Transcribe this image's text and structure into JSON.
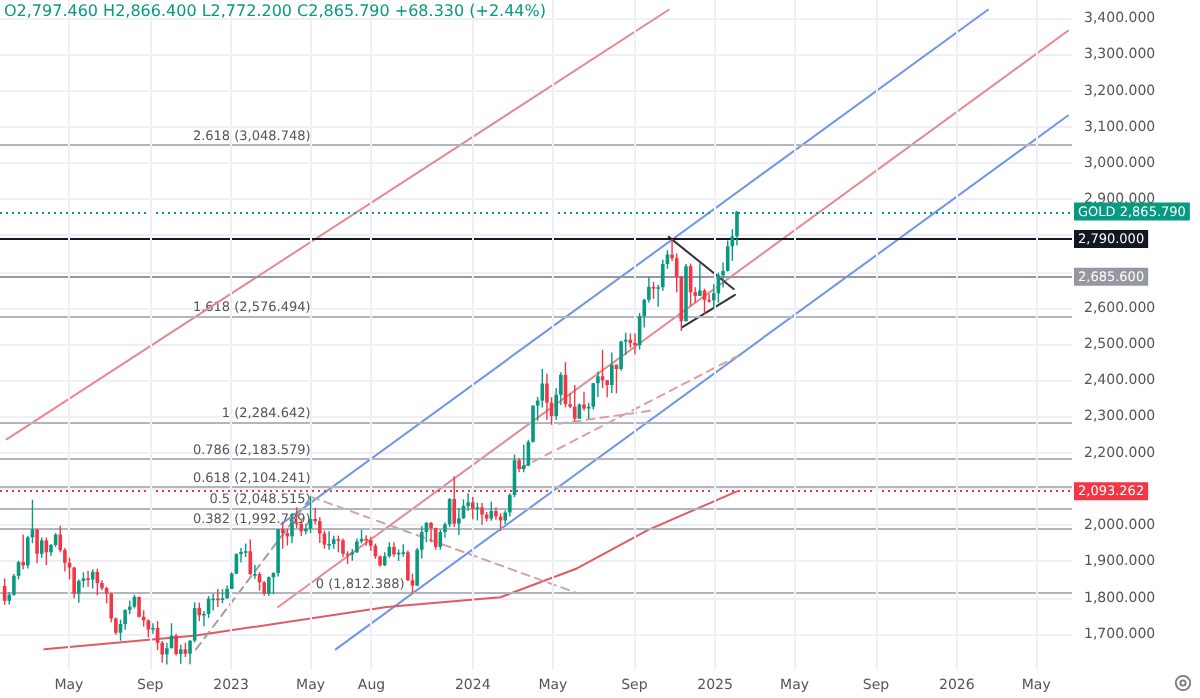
{
  "chart_data": {
    "type": "candlestick",
    "colors": [
      "#f23645",
      "#089981",
      "#089981",
      "#089981",
      "#f23645",
      "#089981",
      "#089981",
      "#f23645",
      "#089981",
      "#f23645",
      "#089981",
      "#089981",
      "#f23645",
      "#f23645",
      "#f23645",
      "#f23645",
      "#089981",
      "#089981",
      "#f23645",
      "#089981",
      "#f23645",
      "#f23645",
      "#f23645",
      "#f23645",
      "#f23645",
      "#089981",
      "#089981",
      "#089981",
      "#089981",
      "#f23645",
      "#f23645",
      "#f23645",
      "#089981",
      "#f23645",
      "#f23645",
      "#089981",
      "#089981",
      "#f23645",
      "#089981",
      "#f23645",
      "#089981",
      "#089981",
      "#f23645",
      "#089981",
      "#089981",
      "#089981",
      "#f23645",
      "#089981",
      "#089981",
      "#089981",
      "#089981",
      "#089981",
      "#089981",
      "#f23645",
      "#089981",
      "#f23645",
      "#f23645",
      "#089981",
      "#089981",
      "#089981",
      "#f23645",
      "#f23645",
      "#089981",
      "#f23645",
      "#f23645",
      "#089981",
      "#089981",
      "#f23645",
      "#f23645",
      "#f23645",
      "#089981",
      "#089981",
      "#f23645",
      "#f23645",
      "#f23645",
      "#089981",
      "#089981",
      "#089981",
      "#f23645",
      "#f23645",
      "#f23645",
      "#f23645",
      "#089981",
      "#089981",
      "#f23645",
      "#089981",
      "#089981",
      "#f23645",
      "#f23645",
      "#089981",
      "#089981",
      "#089981",
      "#f23645",
      "#f23645",
      "#089981",
      "#089981",
      "#089981",
      "#f23645",
      "#089981",
      "#089981",
      "#089981",
      "#f23645",
      "#089981",
      "#f23645",
      "#f23645",
      "#089981",
      "#f23645",
      "#f23645",
      "#089981",
      "#089981",
      "#089981",
      "#f23645",
      "#089981",
      "#089981",
      "#089981",
      "#089981",
      "#089981",
      "#f23645",
      "#f23645",
      "#089981",
      "#089981",
      "#f23645",
      "#f23645",
      "#f23645",
      "#089981",
      "#f23645",
      "#089981",
      "#089981",
      "#089981",
      "#f23645",
      "#f23645",
      "#089981",
      "#f23645",
      "#089981",
      "#089981",
      "#f23645",
      "#f23645",
      "#089981",
      "#089981",
      "#089981",
      "#f23645",
      "#089981",
      "#089981",
      "#089981",
      "#f23645",
      "#f23645",
      "#f23645",
      "#089981",
      "#f23645",
      "#f23645",
      "#089981",
      "#f23645",
      "#f23645",
      "#089981",
      "#089981",
      "#089981",
      "#089981",
      "#089981",
      "#089981"
    ],
    "annotations": [
      "O2,797.460 H2,866.400 L2,772.200 C2,865.790 +68.330 (+2.44%)",
      {
        "text": "2.618 (3,048.748)",
        "x": "2023-05-01",
        "y": 3048.748
      },
      {
        "text": "1.618 (2,576.494)",
        "x": "2023-05-01",
        "y": 2576.494
      },
      {
        "text": "1 (2,284.642)",
        "x": "2023-05-01",
        "y": 2284.642
      },
      {
        "text": "0.786 (2,183.579)",
        "x": "2023-05-01",
        "y": 2183.579
      },
      {
        "text": "0.618 (2,104.241)",
        "x": "2023-05-01",
        "y": 2104.241
      },
      {
        "text": "0.5 (2,048.515)",
        "x": "2023-05-01",
        "y": 2048.515
      },
      {
        "text": "0.382 (1,992.789)",
        "x": "2023-05-01",
        "y": 1992.789
      },
      {
        "text": "0 (1,812.388)",
        "x": "2023-09-20",
        "y": 1812.388
      }
    ],
    "x": [
      "2022-01-24",
      "2022-01-31",
      "2022-02-07",
      "2022-02-14",
      "2022-02-21",
      "2022-02-28",
      "2022-03-07",
      "2022-03-14",
      "2022-03-21",
      "2022-03-28",
      "2022-04-04",
      "2022-04-11",
      "2022-04-18",
      "2022-04-25",
      "2022-05-02",
      "2022-05-09",
      "2022-05-16",
      "2022-05-23",
      "2022-05-30",
      "2022-06-06",
      "2022-06-13",
      "2022-06-20",
      "2022-06-27",
      "2022-07-04",
      "2022-07-11",
      "2022-07-18",
      "2022-07-25",
      "2022-08-01",
      "2022-08-08",
      "2022-08-15",
      "2022-08-22",
      "2022-08-29",
      "2022-09-05",
      "2022-09-12",
      "2022-09-19",
      "2022-09-26",
      "2022-10-03",
      "2022-10-10",
      "2022-10-17",
      "2022-10-24",
      "2022-10-31",
      "2022-11-07",
      "2022-11-14",
      "2022-11-21",
      "2022-11-28",
      "2022-12-05",
      "2022-12-12",
      "2022-12-19",
      "2022-12-26",
      "2023-01-02",
      "2023-01-09",
      "2023-01-16",
      "2023-01-23",
      "2023-01-30",
      "2023-02-06",
      "2023-02-13",
      "2023-02-20",
      "2023-02-27",
      "2023-03-06",
      "2023-03-13",
      "2023-03-20",
      "2023-03-27",
      "2023-04-03",
      "2023-04-10",
      "2023-04-17",
      "2023-04-24",
      "2023-05-01",
      "2023-05-08",
      "2023-05-15",
      "2023-05-22",
      "2023-05-29",
      "2023-06-05",
      "2023-06-12",
      "2023-06-19",
      "2023-06-26",
      "2023-07-03",
      "2023-07-10",
      "2023-07-17",
      "2023-07-24",
      "2023-07-31",
      "2023-08-07",
      "2023-08-14",
      "2023-08-21",
      "2023-08-28",
      "2023-09-04",
      "2023-09-11",
      "2023-09-18",
      "2023-09-25",
      "2023-10-02",
      "2023-10-09",
      "2023-10-16",
      "2023-10-23",
      "2023-10-30",
      "2023-11-06",
      "2023-11-13",
      "2023-11-20",
      "2023-11-27",
      "2023-12-04",
      "2023-12-11",
      "2023-12-18",
      "2023-12-25",
      "2024-01-01",
      "2024-01-08",
      "2024-01-15",
      "2024-01-22",
      "2024-01-29",
      "2024-02-05",
      "2024-02-12",
      "2024-02-19",
      "2024-02-26",
      "2024-03-04",
      "2024-03-11",
      "2024-03-18",
      "2024-03-25",
      "2024-04-01",
      "2024-04-08",
      "2024-04-15",
      "2024-04-22",
      "2024-04-29",
      "2024-05-06",
      "2024-05-13",
      "2024-05-20",
      "2024-05-27",
      "2024-06-03",
      "2024-06-10",
      "2024-06-17",
      "2024-06-24",
      "2024-07-01",
      "2024-07-08",
      "2024-07-15",
      "2024-07-22",
      "2024-07-29",
      "2024-08-05",
      "2024-08-12",
      "2024-08-19",
      "2024-08-26",
      "2024-09-02",
      "2024-09-09",
      "2024-09-16",
      "2024-09-23",
      "2024-09-30",
      "2024-10-07",
      "2024-10-14",
      "2024-10-21",
      "2024-10-28",
      "2024-11-04",
      "2024-11-11",
      "2024-11-18",
      "2024-11-25",
      "2024-12-02",
      "2024-12-09",
      "2024-12-16",
      "2024-12-23",
      "2024-12-30",
      "2025-01-06",
      "2025-01-13",
      "2025-01-20",
      "2025-01-27",
      "2025-02-03"
    ],
    "ohlc": [
      [
        1832,
        1853,
        1780,
        1791
      ],
      [
        1791,
        1815,
        1781,
        1808
      ],
      [
        1808,
        1865,
        1805,
        1860
      ],
      [
        1860,
        1902,
        1850,
        1898
      ],
      [
        1898,
        1974,
        1878,
        1889
      ],
      [
        1889,
        1970,
        1880,
        1966
      ],
      [
        1966,
        2070,
        1950,
        1988
      ],
      [
        1988,
        1990,
        1895,
        1921
      ],
      [
        1921,
        1966,
        1910,
        1958
      ],
      [
        1958,
        1966,
        1890,
        1925
      ],
      [
        1925,
        1948,
        1915,
        1945
      ],
      [
        1945,
        1978,
        1940,
        1974
      ],
      [
        1974,
        1998,
        1925,
        1931
      ],
      [
        1931,
        1937,
        1872,
        1896
      ],
      [
        1896,
        1910,
        1850,
        1883
      ],
      [
        1883,
        1885,
        1798,
        1811
      ],
      [
        1811,
        1850,
        1786,
        1846
      ],
      [
        1846,
        1870,
        1828,
        1853
      ],
      [
        1853,
        1874,
        1830,
        1850
      ],
      [
        1850,
        1878,
        1825,
        1871
      ],
      [
        1871,
        1880,
        1806,
        1840
      ],
      [
        1840,
        1848,
        1820,
        1826
      ],
      [
        1826,
        1830,
        1784,
        1811
      ],
      [
        1811,
        1813,
        1732,
        1742
      ],
      [
        1742,
        1745,
        1697,
        1703
      ],
      [
        1703,
        1739,
        1681,
        1727
      ],
      [
        1727,
        1767,
        1711,
        1766
      ],
      [
        1766,
        1792,
        1754,
        1775
      ],
      [
        1775,
        1808,
        1770,
        1802
      ],
      [
        1802,
        1802,
        1745,
        1747
      ],
      [
        1747,
        1765,
        1720,
        1737
      ],
      [
        1737,
        1740,
        1690,
        1712
      ],
      [
        1712,
        1729,
        1700,
        1716
      ],
      [
        1716,
        1735,
        1655,
        1675
      ],
      [
        1675,
        1680,
        1620,
        1643
      ],
      [
        1643,
        1675,
        1615,
        1660
      ],
      [
        1660,
        1729,
        1660,
        1695
      ],
      [
        1695,
        1700,
        1640,
        1644
      ],
      [
        1644,
        1670,
        1617,
        1657
      ],
      [
        1657,
        1675,
        1636,
        1645
      ],
      [
        1645,
        1682,
        1616,
        1681
      ],
      [
        1681,
        1787,
        1676,
        1771
      ],
      [
        1771,
        1786,
        1735,
        1751
      ],
      [
        1751,
        1763,
        1721,
        1755
      ],
      [
        1755,
        1804,
        1744,
        1797
      ],
      [
        1797,
        1810,
        1764,
        1797
      ],
      [
        1797,
        1824,
        1774,
        1793
      ],
      [
        1793,
        1823,
        1784,
        1798
      ],
      [
        1798,
        1833,
        1797,
        1824
      ],
      [
        1824,
        1870,
        1824,
        1866
      ],
      [
        1866,
        1922,
        1865,
        1920
      ],
      [
        1920,
        1937,
        1897,
        1926
      ],
      [
        1926,
        1949,
        1912,
        1928
      ],
      [
        1928,
        1960,
        1862,
        1865
      ],
      [
        1865,
        1890,
        1852,
        1865
      ],
      [
        1865,
        1870,
        1819,
        1842
      ],
      [
        1842,
        1846,
        1805,
        1811
      ],
      [
        1811,
        1858,
        1804,
        1856
      ],
      [
        1856,
        1870,
        1809,
        1868
      ],
      [
        1868,
        1989,
        1858,
        1989
      ],
      [
        1989,
        2010,
        1935,
        1978
      ],
      [
        1978,
        1990,
        1944,
        1969
      ],
      [
        1969,
        2032,
        1950,
        2007
      ],
      [
        2007,
        2049,
        1992,
        2004
      ],
      [
        2004,
        2015,
        1970,
        1983
      ],
      [
        1983,
        2004,
        1975,
        1990
      ],
      [
        1990,
        2081,
        1978,
        2017
      ],
      [
        2017,
        2048,
        2002,
        2011
      ],
      [
        2011,
        2022,
        1951,
        1977
      ],
      [
        1977,
        1985,
        1935,
        1946
      ],
      [
        1946,
        1983,
        1932,
        1948
      ],
      [
        1948,
        1971,
        1935,
        1961
      ],
      [
        1961,
        1971,
        1925,
        1958
      ],
      [
        1958,
        1963,
        1911,
        1921
      ],
      [
        1921,
        1928,
        1893,
        1919
      ],
      [
        1919,
        1935,
        1902,
        1925
      ],
      [
        1925,
        1963,
        1923,
        1955
      ],
      [
        1955,
        1987,
        1950,
        1962
      ],
      [
        1962,
        1972,
        1943,
        1959
      ],
      [
        1959,
        1968,
        1929,
        1943
      ],
      [
        1943,
        1949,
        1907,
        1914
      ],
      [
        1914,
        1916,
        1885,
        1889
      ],
      [
        1889,
        1925,
        1887,
        1914
      ],
      [
        1914,
        1953,
        1910,
        1940
      ],
      [
        1940,
        1953,
        1913,
        1919
      ],
      [
        1919,
        1933,
        1901,
        1924
      ],
      [
        1924,
        1947,
        1913,
        1925
      ],
      [
        1925,
        1930,
        1846,
        1848
      ],
      [
        1848,
        1866,
        1810,
        1833
      ],
      [
        1833,
        1937,
        1831,
        1932
      ],
      [
        1932,
        1997,
        1908,
        1981
      ],
      [
        1981,
        2009,
        1953,
        2006
      ],
      [
        2006,
        2009,
        1953,
        1992
      ],
      [
        1992,
        1993,
        1932,
        1940
      ],
      [
        1940,
        1987,
        1932,
        1981
      ],
      [
        1981,
        2007,
        1965,
        2002
      ],
      [
        2002,
        2075,
        1994,
        2072
      ],
      [
        2072,
        2135,
        1995,
        2004
      ],
      [
        2004,
        2047,
        1973,
        2019
      ],
      [
        2019,
        2071,
        2017,
        2053
      ],
      [
        2053,
        2088,
        2040,
        2063
      ],
      [
        2063,
        2078,
        2016,
        2045
      ],
      [
        2045,
        2062,
        2013,
        2049
      ],
      [
        2049,
        2061,
        2001,
        2029
      ],
      [
        2029,
        2036,
        2010,
        2018
      ],
      [
        2018,
        2065,
        2012,
        2039
      ],
      [
        2039,
        2049,
        2015,
        2024
      ],
      [
        2024,
        2033,
        1984,
        2013
      ],
      [
        2013,
        2041,
        2003,
        2035
      ],
      [
        2035,
        2088,
        2024,
        2083
      ],
      [
        2083,
        2195,
        2077,
        2179
      ],
      [
        2179,
        2185,
        2146,
        2155
      ],
      [
        2155,
        2222,
        2146,
        2165
      ],
      [
        2165,
        2236,
        2163,
        2230
      ],
      [
        2230,
        2330,
        2228,
        2330
      ],
      [
        2330,
        2354,
        2288,
        2344
      ],
      [
        2344,
        2431,
        2325,
        2391
      ],
      [
        2391,
        2418,
        2291,
        2338
      ],
      [
        2338,
        2353,
        2277,
        2301
      ],
      [
        2301,
        2378,
        2291,
        2360
      ],
      [
        2360,
        2422,
        2332,
        2415
      ],
      [
        2415,
        2450,
        2325,
        2334
      ],
      [
        2334,
        2364,
        2323,
        2327
      ],
      [
        2327,
        2387,
        2287,
        2294
      ],
      [
        2294,
        2336,
        2293,
        2333
      ],
      [
        2333,
        2368,
        2316,
        2322
      ],
      [
        2322,
        2338,
        2293,
        2327
      ],
      [
        2327,
        2392,
        2319,
        2392
      ],
      [
        2392,
        2424,
        2354,
        2411
      ],
      [
        2411,
        2484,
        2379,
        2400
      ],
      [
        2400,
        2400,
        2353,
        2387
      ],
      [
        2387,
        2477,
        2365,
        2443
      ],
      [
        2443,
        2443,
        2364,
        2431
      ],
      [
        2431,
        2509,
        2426,
        2507
      ],
      [
        2507,
        2531,
        2470,
        2512
      ],
      [
        2512,
        2529,
        2490,
        2503
      ],
      [
        2503,
        2529,
        2472,
        2497
      ],
      [
        2497,
        2586,
        2485,
        2577
      ],
      [
        2577,
        2625,
        2546,
        2622
      ],
      [
        2622,
        2685,
        2615,
        2658
      ],
      [
        2658,
        2672,
        2625,
        2653
      ],
      [
        2653,
        2664,
        2603,
        2657
      ],
      [
        2657,
        2733,
        2647,
        2721
      ],
      [
        2721,
        2759,
        2708,
        2747
      ],
      [
        2747,
        2790,
        2729,
        2737
      ],
      [
        2737,
        2750,
        2643,
        2685
      ],
      [
        2685,
        2688,
        2536,
        2563
      ],
      [
        2563,
        2721,
        2563,
        2715
      ],
      [
        2715,
        2722,
        2605,
        2643
      ],
      [
        2643,
        2657,
        2614,
        2633
      ],
      [
        2633,
        2726,
        2632,
        2648
      ],
      [
        2648,
        2653,
        2583,
        2622
      ],
      [
        2622,
        2639,
        2614,
        2621
      ],
      [
        2621,
        2665,
        2597,
        2640
      ],
      [
        2640,
        2697,
        2614,
        2690
      ],
      [
        2690,
        2725,
        2656,
        2702
      ],
      [
        2702,
        2786,
        2700,
        2770
      ],
      [
        2770,
        2817,
        2730,
        2797.46
      ],
      [
        2797.46,
        2866.4,
        2772.2,
        2865.79
      ]
    ],
    "series": [
      {
        "type": "line",
        "color": "#6f95e8",
        "line_style": "solid",
        "x": [
          "2023-03-18",
          "2026-02-17"
        ],
        "values": [
          2003,
          3423
        ]
      },
      {
        "type": "line",
        "color": "#e58a90",
        "line_style": "solid",
        "x": [
          "2023-03-13",
          "2026-06-18"
        ],
        "values": [
          1774,
          3365
        ]
      },
      {
        "type": "line",
        "color": "#6f95e8",
        "line_style": "solid",
        "x": [
          "2023-06-08",
          "2026-06-18"
        ],
        "values": [
          1657,
          3131
        ]
      },
      {
        "type": "line",
        "color": "#e58a90",
        "line_style": "solid",
        "x": [
          "2022-01-27",
          "2024-10-23"
        ],
        "values": [
          2237,
          3423
        ]
      },
      {
        "type": "line",
        "color": "#e05a66",
        "line_style": "solid",
        "x": [
          "2022-03-25",
          "2022-11-09",
          "2023-08-24",
          "2024-02-12",
          "2024-06-07",
          "2024-09-22",
          "2025-02-03"
        ],
        "values": [
          1657,
          1695,
          1774,
          1801,
          1881,
          1987,
          2093.262
        ]
      },
      {
        "type": "line",
        "color": "#c9a5aa",
        "line_style": "dashed",
        "x": [
          "2023-05-02",
          "2024-06-07"
        ],
        "values": [
          2078,
          1812
        ]
      },
      {
        "type": "line",
        "color": "#a0a0a0",
        "line_style": "dashed",
        "x": [
          "2022-11-09",
          "2023-05-02"
        ],
        "values": [
          1657,
          2078
        ]
      },
      {
        "type": "line",
        "color": "#d9a0a5",
        "line_style": "dashed",
        "x": [
          "2024-03-13",
          "2025-02-03"
        ],
        "values": [
          2157,
          2466
        ]
      },
      {
        "type": "line",
        "color": "#d9a0a5",
        "line_style": "dashed",
        "x": [
          "2024-05-10",
          "2024-09-30"
        ],
        "values": [
          2280,
          2317
        ]
      },
      {
        "type": "line",
        "color": "#333333",
        "line_style": "solid",
        "x": [
          "2024-10-23",
          "2025-01-29"
        ],
        "values": [
          2796,
          2652
        ]
      },
      {
        "type": "line",
        "color": "#333333",
        "line_style": "solid",
        "x": [
          "2024-11-12",
          "2025-01-31"
        ],
        "values": [
          2546,
          2636
        ]
      }
    ],
    "ref_lines": [
      {
        "axis": "y",
        "value": 3048.748,
        "color": "#b2b5be",
        "line_style": "solid"
      },
      {
        "axis": "y",
        "value": 2576.494,
        "color": "#b2b5be",
        "line_style": "solid"
      },
      {
        "axis": "y",
        "value": 2284.642,
        "color": "#b2b5be",
        "line_style": "solid"
      },
      {
        "axis": "y",
        "value": 2183.579,
        "color": "#b2b5be",
        "line_style": "solid"
      },
      {
        "axis": "y",
        "value": 2104.241,
        "color": "#b2b5be",
        "line_style": "solid"
      },
      {
        "axis": "y",
        "value": 2048.515,
        "color": "#b2b5be",
        "line_style": "solid"
      },
      {
        "axis": "y",
        "value": 1992.789,
        "color": "#b2b5be",
        "line_style": "solid"
      },
      {
        "axis": "y",
        "value": 1812.388,
        "color": "#b2b5be",
        "line_style": "solid"
      },
      {
        "axis": "y",
        "value": 2865.79,
        "label": "GOLD 2,865.790",
        "color": "#089981",
        "line_style": "dotted"
      },
      {
        "axis": "y",
        "value": 2790,
        "label": "2,790.000",
        "color": "#131722",
        "line_style": "solid"
      },
      {
        "axis": "y",
        "value": 2685.6,
        "label": "2,685.600",
        "color": "#9598a1",
        "line_style": "solid"
      },
      {
        "axis": "y",
        "value": 2093.262,
        "label": "2,093.262",
        "color": "#f23645",
        "line_style": "dotted"
      }
    ],
    "xlim": [
      "2022-01-17",
      "2026-06-24"
    ],
    "ylim": [
      1600,
      3450
    ],
    "xticks": [
      {
        "value": "2022-05-01",
        "label": "May"
      },
      {
        "value": "2022-09-01",
        "label": "Sep"
      },
      {
        "value": "2023-01-01",
        "label": "2023"
      },
      {
        "value": "2023-05-01",
        "label": "May"
      },
      {
        "value": "2023-08-01",
        "label": "Aug"
      },
      {
        "value": "2024-01-01",
        "label": "2024"
      },
      {
        "value": "2024-05-01",
        "label": "May"
      },
      {
        "value": "2024-09-01",
        "label": "Sep"
      },
      {
        "value": "2025-01-01",
        "label": "2025"
      },
      {
        "value": "2025-05-01",
        "label": "May"
      },
      {
        "value": "2025-09-01",
        "label": "Sep"
      },
      {
        "value": "2026-01-01",
        "label": "2026"
      },
      {
        "value": "2026-05-01",
        "label": "May"
      }
    ],
    "yticks": [
      {
        "value": 1700,
        "label": "1,700.000"
      },
      {
        "value": 1800,
        "label": "1,800.000"
      },
      {
        "value": 1900,
        "label": "1,900.000"
      },
      {
        "value": 2000,
        "label": "2,000.000"
      },
      {
        "value": 2100,
        "label": null
      },
      {
        "value": 2200,
        "label": "2,200.000"
      },
      {
        "value": 2300,
        "label": "2,300.000"
      },
      {
        "value": 2400,
        "label": "2,400.000"
      },
      {
        "value": 2500,
        "label": "2,500.000"
      },
      {
        "value": 2600,
        "label": "2,600.000"
      },
      {
        "value": 2700,
        "label": null
      },
      {
        "value": 2800,
        "label": null
      },
      {
        "value": 2900,
        "label": "2,900.000"
      },
      {
        "value": 3000,
        "label": "3,000.000"
      },
      {
        "value": 3100,
        "label": "3,100.000"
      },
      {
        "value": 3200,
        "label": "3,200.000"
      },
      {
        "value": 3300,
        "label": "3,300.000"
      },
      {
        "value": 3400,
        "label": "3,400.000"
      }
    ],
    "grid": true
  }
}
